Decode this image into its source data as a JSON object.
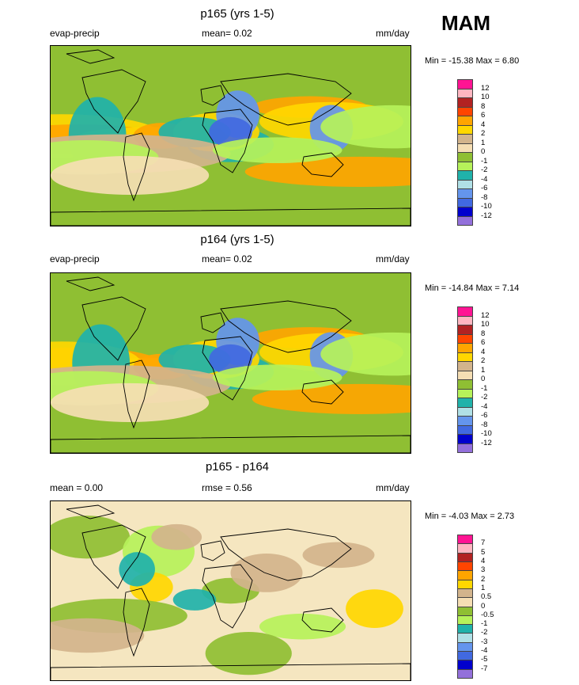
{
  "season": "MAM",
  "panels": [
    {
      "title": "p165 (yrs 1-5)",
      "left_label": "evap-precip",
      "center_label": "mean=  0.02",
      "units": "mm/day",
      "minmax": "Min = -15.38 Max =   6.80",
      "background_color": "#8fbf33",
      "colorbar_labels": [
        "12",
        "10",
        "8",
        "6",
        "4",
        "2",
        "1",
        "0",
        "-1",
        "-2",
        "-4",
        "-6",
        "-8",
        "-10",
        "-12"
      ],
      "colorbar_colors": [
        "#ff1493",
        "#ffb6c1",
        "#b22222",
        "#ff4500",
        "#ffa500",
        "#ffd700",
        "#d2b48c",
        "#f5deb3",
        "#8fbf33",
        "#b6f25a",
        "#20b2aa",
        "#b0e0e6",
        "#6495ed",
        "#4169e1",
        "#0000cd",
        "#9370db"
      ]
    },
    {
      "title": "p164 (yrs 1-5)",
      "left_label": "evap-precip",
      "center_label": "mean=  0.02",
      "units": "mm/day",
      "minmax": "Min = -14.84 Max =   7.14",
      "background_color": "#8fbf33",
      "colorbar_labels": [
        "12",
        "10",
        "8",
        "6",
        "4",
        "2",
        "1",
        "0",
        "-1",
        "-2",
        "-4",
        "-6",
        "-8",
        "-10",
        "-12"
      ],
      "colorbar_colors": [
        "#ff1493",
        "#ffb6c1",
        "#b22222",
        "#ff4500",
        "#ffa500",
        "#ffd700",
        "#d2b48c",
        "#f5deb3",
        "#8fbf33",
        "#b6f25a",
        "#20b2aa",
        "#b0e0e6",
        "#6495ed",
        "#4169e1",
        "#0000cd",
        "#9370db"
      ]
    },
    {
      "title": "p165 - p164",
      "left_label": "mean =   0.00",
      "center_label": "rmse =   0.56",
      "units": "mm/day",
      "minmax": "Min =  -4.03 Max =   2.73",
      "background_color": "#f5e6c0",
      "colorbar_labels": [
        "7",
        "5",
        "4",
        "3",
        "2",
        "1",
        "0.5",
        "0",
        "-0.5",
        "-1",
        "-2",
        "-3",
        "-4",
        "-5",
        "-7"
      ],
      "colorbar_colors": [
        "#ff1493",
        "#ffb6c1",
        "#b22222",
        "#ff4500",
        "#ffa500",
        "#ffd700",
        "#d2b48c",
        "#f5deb3",
        "#8fbf33",
        "#b6f25a",
        "#20b2aa",
        "#b0e0e6",
        "#6495ed",
        "#4169e1",
        "#0000cd",
        "#9370db"
      ]
    }
  ],
  "chart_data": [
    {
      "type": "heatmap",
      "title": "p165 (yrs 1-5)",
      "subtitle": "evap-precip",
      "units": "mm/day",
      "mean": 0.02,
      "min": -15.38,
      "max": 6.8,
      "contour_levels": [
        -12,
        -10,
        -8,
        -6,
        -4,
        -2,
        -1,
        0,
        1,
        2,
        4,
        6,
        8,
        10,
        12
      ],
      "projection": "cylindrical equidistant, global"
    },
    {
      "type": "heatmap",
      "title": "p164 (yrs 1-5)",
      "subtitle": "evap-precip",
      "units": "mm/day",
      "mean": 0.02,
      "min": -14.84,
      "max": 7.14,
      "contour_levels": [
        -12,
        -10,
        -8,
        -6,
        -4,
        -2,
        -1,
        0,
        1,
        2,
        4,
        6,
        8,
        10,
        12
      ],
      "projection": "cylindrical equidistant, global"
    },
    {
      "type": "heatmap",
      "title": "p165 - p164",
      "units": "mm/day",
      "mean": 0.0,
      "rmse": 0.56,
      "min": -4.03,
      "max": 2.73,
      "contour_levels": [
        -7,
        -5,
        -4,
        -3,
        -2,
        -1,
        -0.5,
        0,
        0.5,
        1,
        2,
        3,
        4,
        5,
        7
      ],
      "projection": "cylindrical equidistant, global"
    }
  ]
}
